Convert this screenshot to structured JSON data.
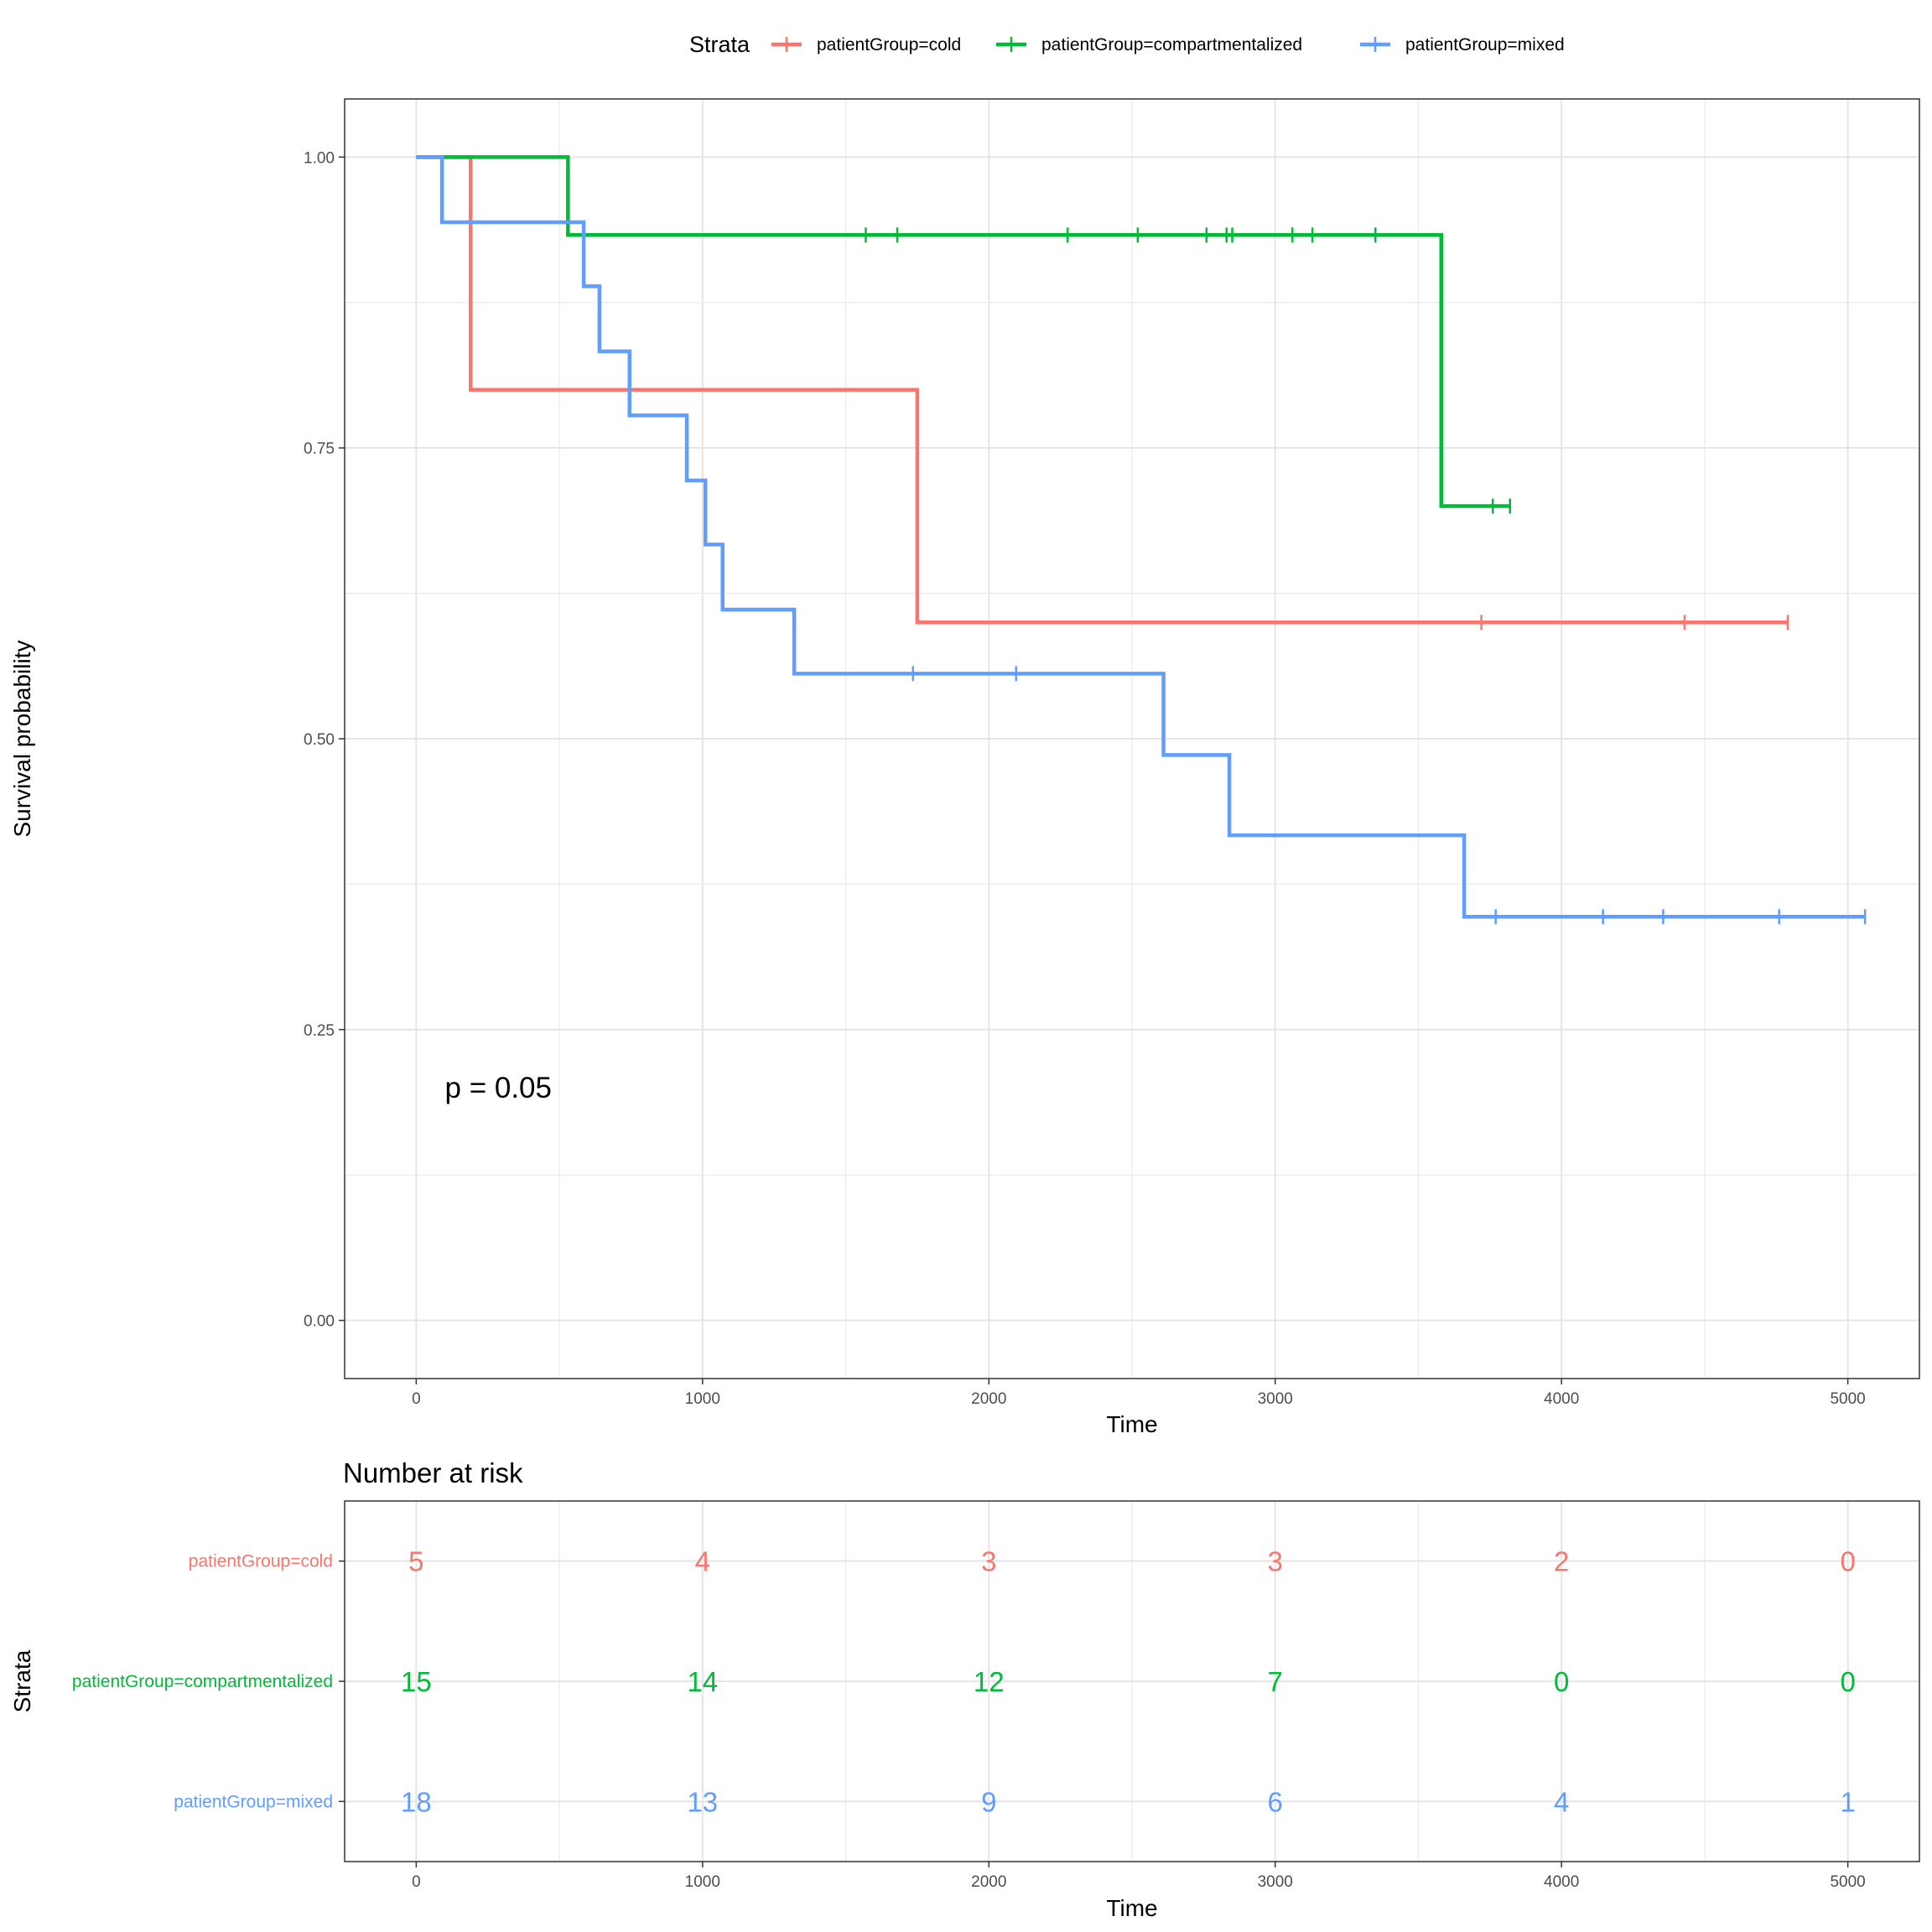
{
  "chart_data": [
    {
      "type": "line",
      "subtype": "kaplan-meier",
      "xlabel": "Time",
      "ylabel": "Survival probability",
      "xlim": [
        -250,
        5250
      ],
      "ylim": [
        -0.05,
        1.05
      ],
      "x_ticks": [
        0,
        1000,
        2000,
        3000,
        4000,
        5000
      ],
      "x_tick_labels": [
        "0",
        "1000",
        "2000",
        "3000",
        "4000",
        "5000"
      ],
      "y_ticks": [
        0,
        0.25,
        0.5,
        0.75,
        1.0
      ],
      "y_tick_labels": [
        "0.00",
        "0.25",
        "0.50",
        "0.75",
        "1.00"
      ],
      "grid": true,
      "legend": {
        "title": "Strata",
        "position": "top",
        "entries": [
          "patientGroup=cold",
          "patientGroup=compartmentalized",
          "patientGroup=mixed"
        ]
      },
      "annotation": "p = 0.05",
      "annotation_at": {
        "x": 100,
        "y": 0.2
      },
      "series": [
        {
          "name": "patientGroup=cold",
          "color": "#F8766D",
          "steps": [
            [
              0,
              1.0
            ],
            [
              190,
              0.8
            ],
            [
              1750,
              0.6
            ]
          ],
          "end": 4790,
          "censor": [
            3720,
            4430,
            4790
          ]
        },
        {
          "name": "patientGroup=compartmentalized",
          "color": "#00BA38",
          "steps": [
            [
              0,
              1.0
            ],
            [
              530,
              0.933
            ],
            [
              3580,
              0.7
            ]
          ],
          "end": 3820,
          "censor": [
            1570,
            1680,
            2275,
            2520,
            2760,
            2830,
            2850,
            3060,
            3130,
            3350,
            3760,
            3820
          ]
        },
        {
          "name": "patientGroup=mixed",
          "color": "#619CFF",
          "steps": [
            [
              0,
              1.0
            ],
            [
              90,
              0.944
            ],
            [
              585,
              0.889
            ],
            [
              640,
              0.833
            ],
            [
              745,
              0.778
            ],
            [
              945,
              0.722
            ],
            [
              1010,
              0.667
            ],
            [
              1070,
              0.611
            ],
            [
              1320,
              0.556
            ],
            [
              2610,
              0.486
            ],
            [
              2840,
              0.417
            ],
            [
              3660,
              0.347
            ]
          ],
          "end": 5060,
          "censor": [
            1735,
            2095,
            3770,
            4145,
            4355,
            4760,
            5060
          ]
        }
      ]
    },
    {
      "type": "table",
      "title": "Number at risk",
      "xlabel": "Time",
      "ylabel": "Strata",
      "xlim": [
        -250,
        5250
      ],
      "x_ticks": [
        0,
        1000,
        2000,
        3000,
        4000,
        5000
      ],
      "x_tick_labels": [
        "0",
        "1000",
        "2000",
        "3000",
        "4000",
        "5000"
      ],
      "rows": [
        {
          "name": "patientGroup=cold",
          "color": "#F8766D",
          "values": [
            5,
            4,
            3,
            3,
            2,
            0
          ]
        },
        {
          "name": "patientGroup=compartmentalized",
          "color": "#00BA38",
          "values": [
            15,
            14,
            12,
            7,
            0,
            0
          ]
        },
        {
          "name": "patientGroup=mixed",
          "color": "#619CFF",
          "values": [
            18,
            13,
            9,
            6,
            4,
            1
          ]
        }
      ]
    }
  ]
}
